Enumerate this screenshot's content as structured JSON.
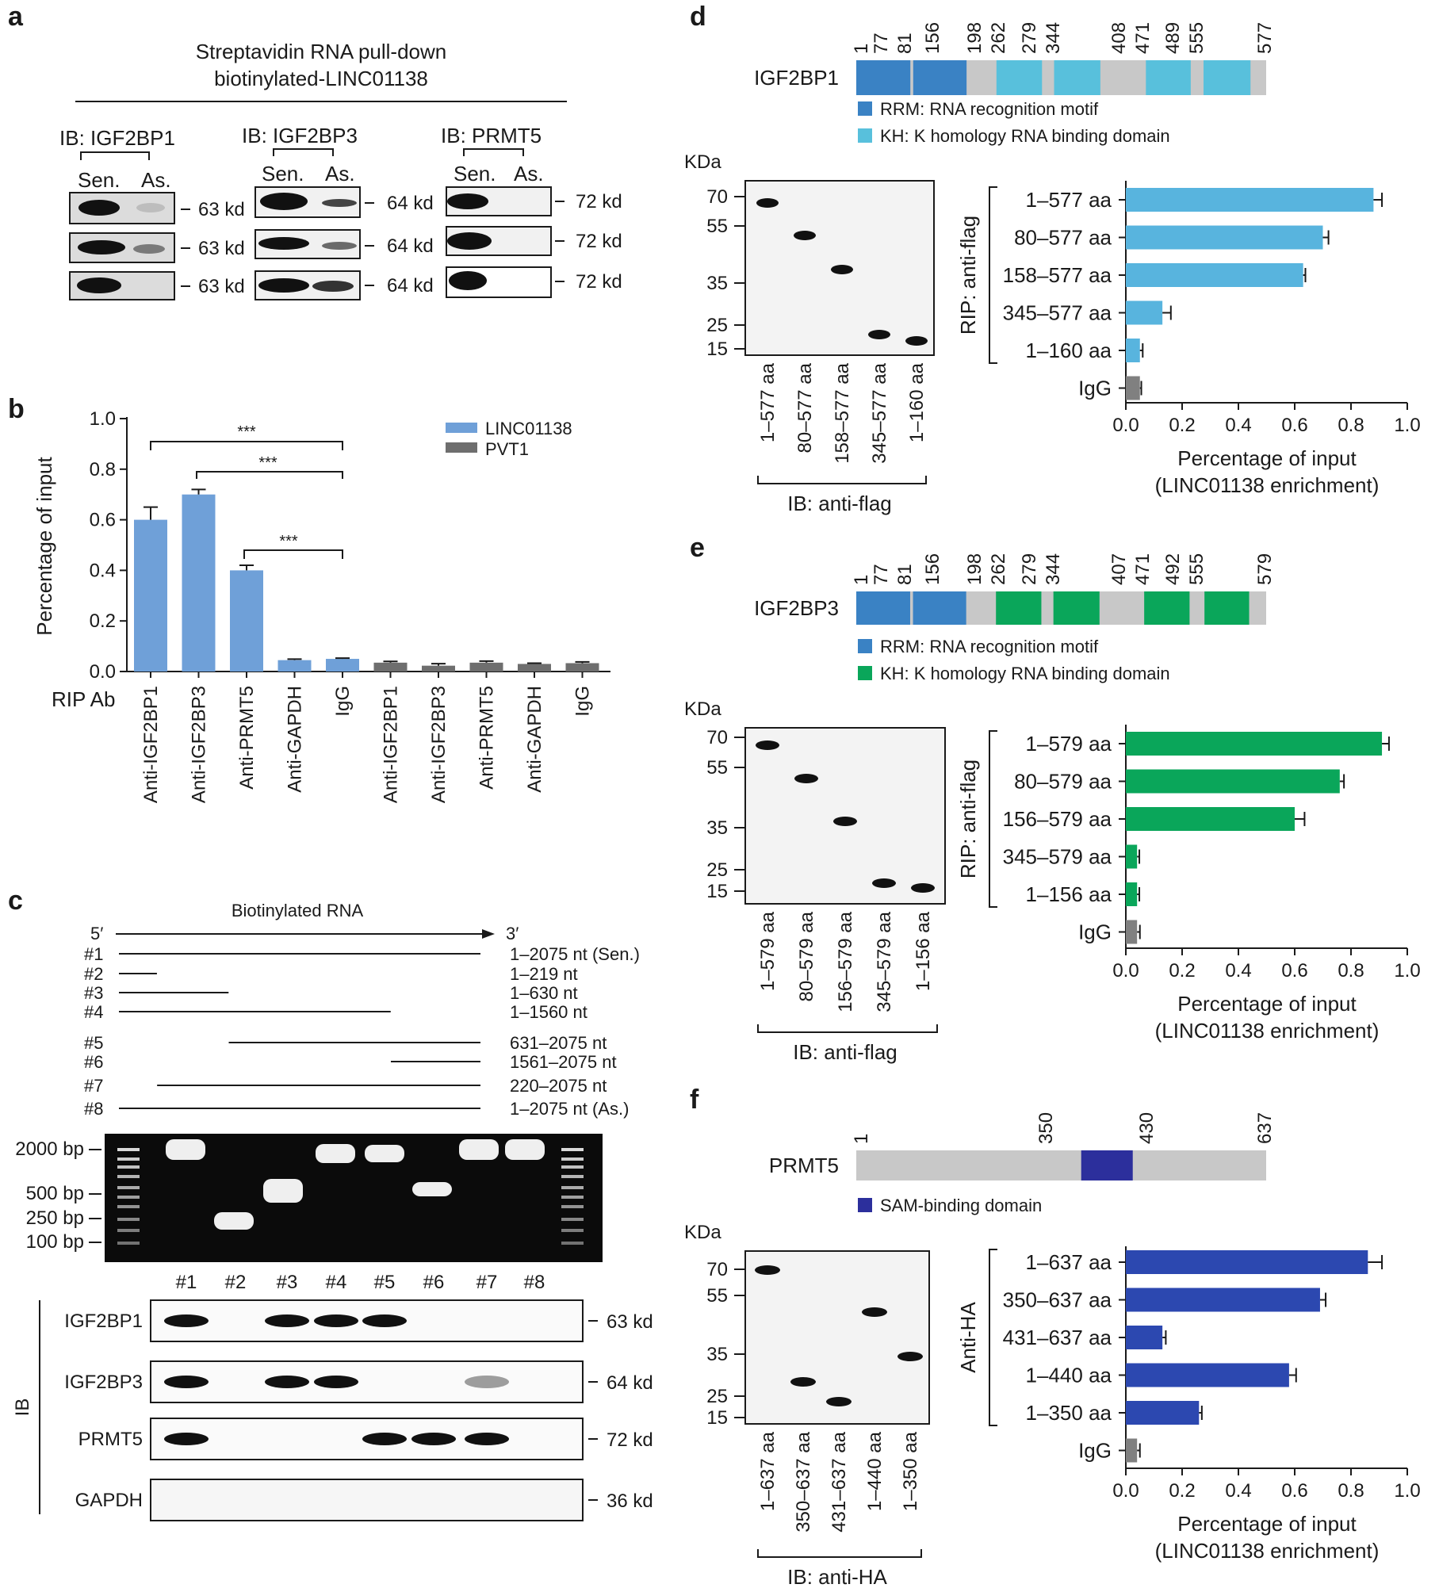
{
  "panel_labels": {
    "a": "a",
    "b": "b",
    "c": "c",
    "d": "d",
    "e": "e",
    "f": "f"
  },
  "panel_a": {
    "title_line1": "Streptavidin RNA pull-down",
    "title_line2": "biotinylated-LINC01138",
    "groups": [
      {
        "ib": "IB: IGF2BP1",
        "lanes": [
          "Sen.",
          "As."
        ],
        "marker": "63 kd"
      },
      {
        "ib": "IB: IGF2BP3",
        "lanes": [
          "Sen.",
          "As."
        ],
        "marker": "64 kd"
      },
      {
        "ib": "IB: PRMT5",
        "lanes": [
          "Sen.",
          "As."
        ],
        "marker": "72 kd"
      }
    ]
  },
  "panel_c": {
    "title": "Biotinylated RNA",
    "five_prime": "5′",
    "three_prime": "3′",
    "constructs": [
      {
        "id": "#1",
        "start": 1,
        "end": 2075,
        "label": "1–2075 nt (Sen.)"
      },
      {
        "id": "#2",
        "start": 1,
        "end": 219,
        "label": "1–219 nt"
      },
      {
        "id": "#3",
        "start": 1,
        "end": 630,
        "label": "1–630 nt"
      },
      {
        "id": "#4",
        "start": 1,
        "end": 1560,
        "label": "1–1560 nt"
      },
      {
        "id": "#5",
        "start": 631,
        "end": 2075,
        "label": "631–2075 nt"
      },
      {
        "id": "#6",
        "start": 1561,
        "end": 2075,
        "label": "1561–2075 nt"
      },
      {
        "id": "#7",
        "start": 220,
        "end": 2075,
        "label": "220–2075 nt"
      },
      {
        "id": "#8",
        "start": 1,
        "end": 2075,
        "label": "1–2075 nt (As.)"
      }
    ],
    "gel_ladder": [
      "2000 bp",
      "500 bp",
      "250 bp",
      "100 bp"
    ],
    "lane_labels": [
      "#1",
      "#2",
      "#3",
      "#4",
      "#5",
      "#6",
      "#7",
      "#8"
    ],
    "ib_label": "IB",
    "ib_rows": [
      {
        "protein": "IGF2BP1",
        "marker": "63 kd"
      },
      {
        "protein": "IGF2BP3",
        "marker": "64 kd"
      },
      {
        "protein": "PRMT5",
        "marker": "72 kd"
      },
      {
        "protein": "GAPDH",
        "marker": "36 kd"
      }
    ]
  },
  "panel_d_domains": {
    "protein": "IGF2BP1",
    "positions": [
      "1",
      "77",
      "81",
      "156",
      "198",
      "262",
      "279",
      "344",
      "408",
      "471",
      "489",
      "555",
      "577"
    ],
    "legend": [
      "RRM: RNA recognition motif",
      "KH: K homology RNA binding domain"
    ]
  },
  "panel_e_domains": {
    "protein": "IGF2BP3",
    "positions": [
      "1",
      "77",
      "81",
      "156",
      "198",
      "262",
      "279",
      "344",
      "407",
      "471",
      "492",
      "555",
      "579"
    ],
    "legend": [
      "RRM: RNA recognition motif",
      "KH: K homology RNA binding domain"
    ]
  },
  "panel_f_domains": {
    "protein": "PRMT5",
    "positions": [
      "1",
      "350",
      "430",
      "637"
    ],
    "legend": [
      "SAM-binding domain"
    ]
  },
  "blots": {
    "d": {
      "kda": "KDa",
      "ticks": [
        "70",
        "55",
        "35",
        "25",
        "15"
      ],
      "lanes": [
        "1–577 aa",
        "80–577 aa",
        "158–577 aa",
        "345–577 aa",
        "1–160 aa"
      ],
      "ib": "IB: anti-flag"
    },
    "e": {
      "kda": "KDa",
      "ticks": [
        "70",
        "55",
        "35",
        "25",
        "15"
      ],
      "lanes": [
        "1–579 aa",
        "80–579 aa",
        "156–579 aa",
        "345–579 aa",
        "1–156 aa"
      ],
      "ib": "IB: anti-flag"
    },
    "f": {
      "kda": "KDa",
      "ticks": [
        "70",
        "55",
        "35",
        "25",
        "15"
      ],
      "lanes": [
        "1–637 aa",
        "350–637 aa",
        "431–637 aa",
        "1–440 aa",
        "1–350 aa"
      ],
      "ib": "IB: anti-HA"
    }
  },
  "colors": {
    "linc": "#6fa0d8",
    "pvt": "#6e6e6e",
    "d_bar": "#58b4de",
    "e_bar": "#0aa65a",
    "f_bar": "#2c48b0",
    "rrm": "#3a82c4",
    "kh_d": "#58c0dc",
    "kh_e": "#0aa65a",
    "sam": "#2c2f9c",
    "igg": "#808080",
    "domain_bg": "#c8c8c8"
  },
  "chart_data": [
    {
      "id": "b",
      "type": "bar",
      "ylabel": "Percentage of input",
      "xlabel": "RIP Ab",
      "ylim": [
        0,
        1.0
      ],
      "yticks": [
        "0.0",
        "0.2",
        "0.4",
        "0.6",
        "0.8",
        "1.0"
      ],
      "categories": [
        "Anti-IGF2BP1",
        "Anti-IGF2BP3",
        "Anti-PRMT5",
        "Anti-GAPDH",
        "IgG",
        "Anti-IGF2BP1",
        "Anti-IGF2BP3",
        "Anti-PRMT5",
        "Anti-GAPDH",
        "IgG"
      ],
      "series": [
        {
          "name": "LINC01138",
          "values": [
            0.6,
            0.7,
            0.4,
            0.045,
            0.05,
            null,
            null,
            null,
            null,
            null
          ],
          "errors": [
            0.05,
            0.02,
            0.02,
            0.004,
            0.003,
            null,
            null,
            null,
            null,
            null
          ]
        },
        {
          "name": "PVT1",
          "values": [
            null,
            null,
            null,
            null,
            null,
            0.035,
            0.023,
            0.035,
            0.03,
            0.033
          ],
          "errors": [
            null,
            null,
            null,
            null,
            null,
            0.005,
            0.008,
            0.006,
            0.003,
            0.005
          ]
        }
      ],
      "significance": [
        "***",
        "***",
        "***"
      ]
    },
    {
      "id": "d",
      "type": "bar",
      "orientation": "horizontal",
      "group_label": "RIP: anti-flag",
      "xlabel_line1": "Percentage of input",
      "xlabel_line2": "(LINC01138 enrichment)",
      "xlim": [
        0,
        1.0
      ],
      "xticks": [
        "0.0",
        "0.2",
        "0.4",
        "0.6",
        "0.8",
        "1.0"
      ],
      "categories": [
        "1–577 aa",
        "80–577 aa",
        "158–577 aa",
        "345–577 aa",
        "1–160 aa",
        "IgG"
      ],
      "values": [
        0.88,
        0.7,
        0.63,
        0.13,
        0.05,
        0.05
      ],
      "errors": [
        0.03,
        0.02,
        0.008,
        0.03,
        0.01,
        0.005
      ]
    },
    {
      "id": "e",
      "type": "bar",
      "orientation": "horizontal",
      "group_label": "RIP: anti-flag",
      "xlabel_line1": "Percentage of input",
      "xlabel_line2": "(LINC01138 enrichment)",
      "xlim": [
        0,
        1.0
      ],
      "xticks": [
        "0.0",
        "0.2",
        "0.4",
        "0.6",
        "0.8",
        "1.0"
      ],
      "categories": [
        "1–579 aa",
        "80–579 aa",
        "156–579 aa",
        "345–579 aa",
        "1–156 aa",
        "IgG"
      ],
      "values": [
        0.91,
        0.76,
        0.6,
        0.04,
        0.04,
        0.04
      ],
      "errors": [
        0.025,
        0.015,
        0.035,
        0.008,
        0.008,
        0.01
      ]
    },
    {
      "id": "f",
      "type": "bar",
      "orientation": "horizontal",
      "group_label": "Anti-HA",
      "xlabel_line1": "Percentage of input",
      "xlabel_line2": "(LINC01138 enrichment)",
      "xlim": [
        0,
        1.0
      ],
      "xticks": [
        "0.0",
        "0.2",
        "0.4",
        "0.6",
        "0.8",
        "1.0"
      ],
      "categories": [
        "1–637 aa",
        "350–637 aa",
        "431–637 aa",
        "1–440 aa",
        "1–350 aa",
        "IgG"
      ],
      "values": [
        0.86,
        0.69,
        0.13,
        0.58,
        0.26,
        0.04
      ],
      "errors": [
        0.05,
        0.02,
        0.012,
        0.025,
        0.01,
        0.01
      ]
    }
  ]
}
